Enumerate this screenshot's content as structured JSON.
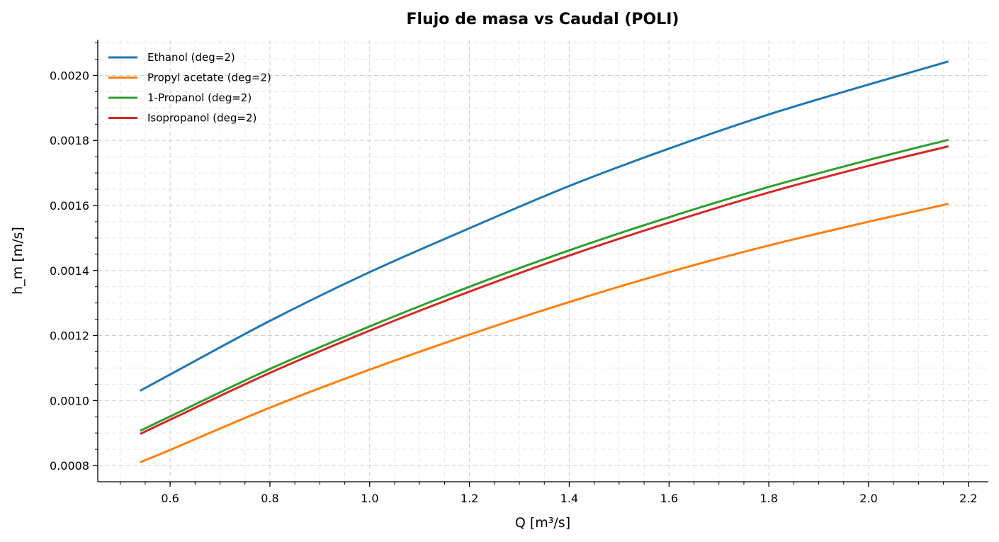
{
  "chart_data": {
    "type": "line",
    "title": "Flujo de masa vs Caudal (POLI)",
    "xlabel": "Q [m³/s]",
    "ylabel": "h_m [m/s]",
    "xlim": [
      0.455,
      2.24
    ],
    "ylim": [
      0.00075,
      0.00211
    ],
    "x_ticks": [
      0.6,
      0.8,
      1.0,
      1.2,
      1.4,
      1.6,
      1.8,
      2.0,
      2.2
    ],
    "x_tick_labels": [
      "0.6",
      "0.8",
      "1.0",
      "1.2",
      "1.4",
      "1.6",
      "1.8",
      "2.0",
      "2.2"
    ],
    "y_ticks": [
      0.0008,
      0.001,
      0.0012,
      0.0014,
      0.0016,
      0.0018,
      0.002
    ],
    "y_tick_labels": [
      "0.0008",
      "0.0010",
      "0.0012",
      "0.0014",
      "0.0016",
      "0.0018",
      "0.0020"
    ],
    "grid": true,
    "legend_position": "top-left",
    "x": [
      0.54,
      0.6,
      0.8,
      1.0,
      1.2,
      1.4,
      1.6,
      1.8,
      2.0,
      2.16
    ],
    "series": [
      {
        "name": "Ethanol (deg=2)",
        "color": "#1f77b4",
        "values": [
          0.00103,
          0.00108,
          0.001245,
          0.001395,
          0.00153,
          0.00166,
          0.001775,
          0.00188,
          0.001972,
          0.002043
        ]
      },
      {
        "name": "Propyl acetate (deg=2)",
        "color": "#ff7f0e",
        "values": [
          0.00081,
          0.000848,
          0.000978,
          0.001095,
          0.001203,
          0.001303,
          0.001395,
          0.001477,
          0.00155,
          0.001605
        ]
      },
      {
        "name": "1-Propanol (deg=2)",
        "color": "#2ca02c",
        "values": [
          0.000907,
          0.000951,
          0.001097,
          0.001228,
          0.00135,
          0.001462,
          0.001564,
          0.001657,
          0.00174,
          0.001802
        ]
      },
      {
        "name": "Isopropanol (deg=2)",
        "color": "#d62728",
        "values": [
          0.000897,
          0.000941,
          0.001085,
          0.001215,
          0.001335,
          0.001446,
          0.001547,
          0.00164,
          0.001722,
          0.001782
        ]
      }
    ]
  }
}
